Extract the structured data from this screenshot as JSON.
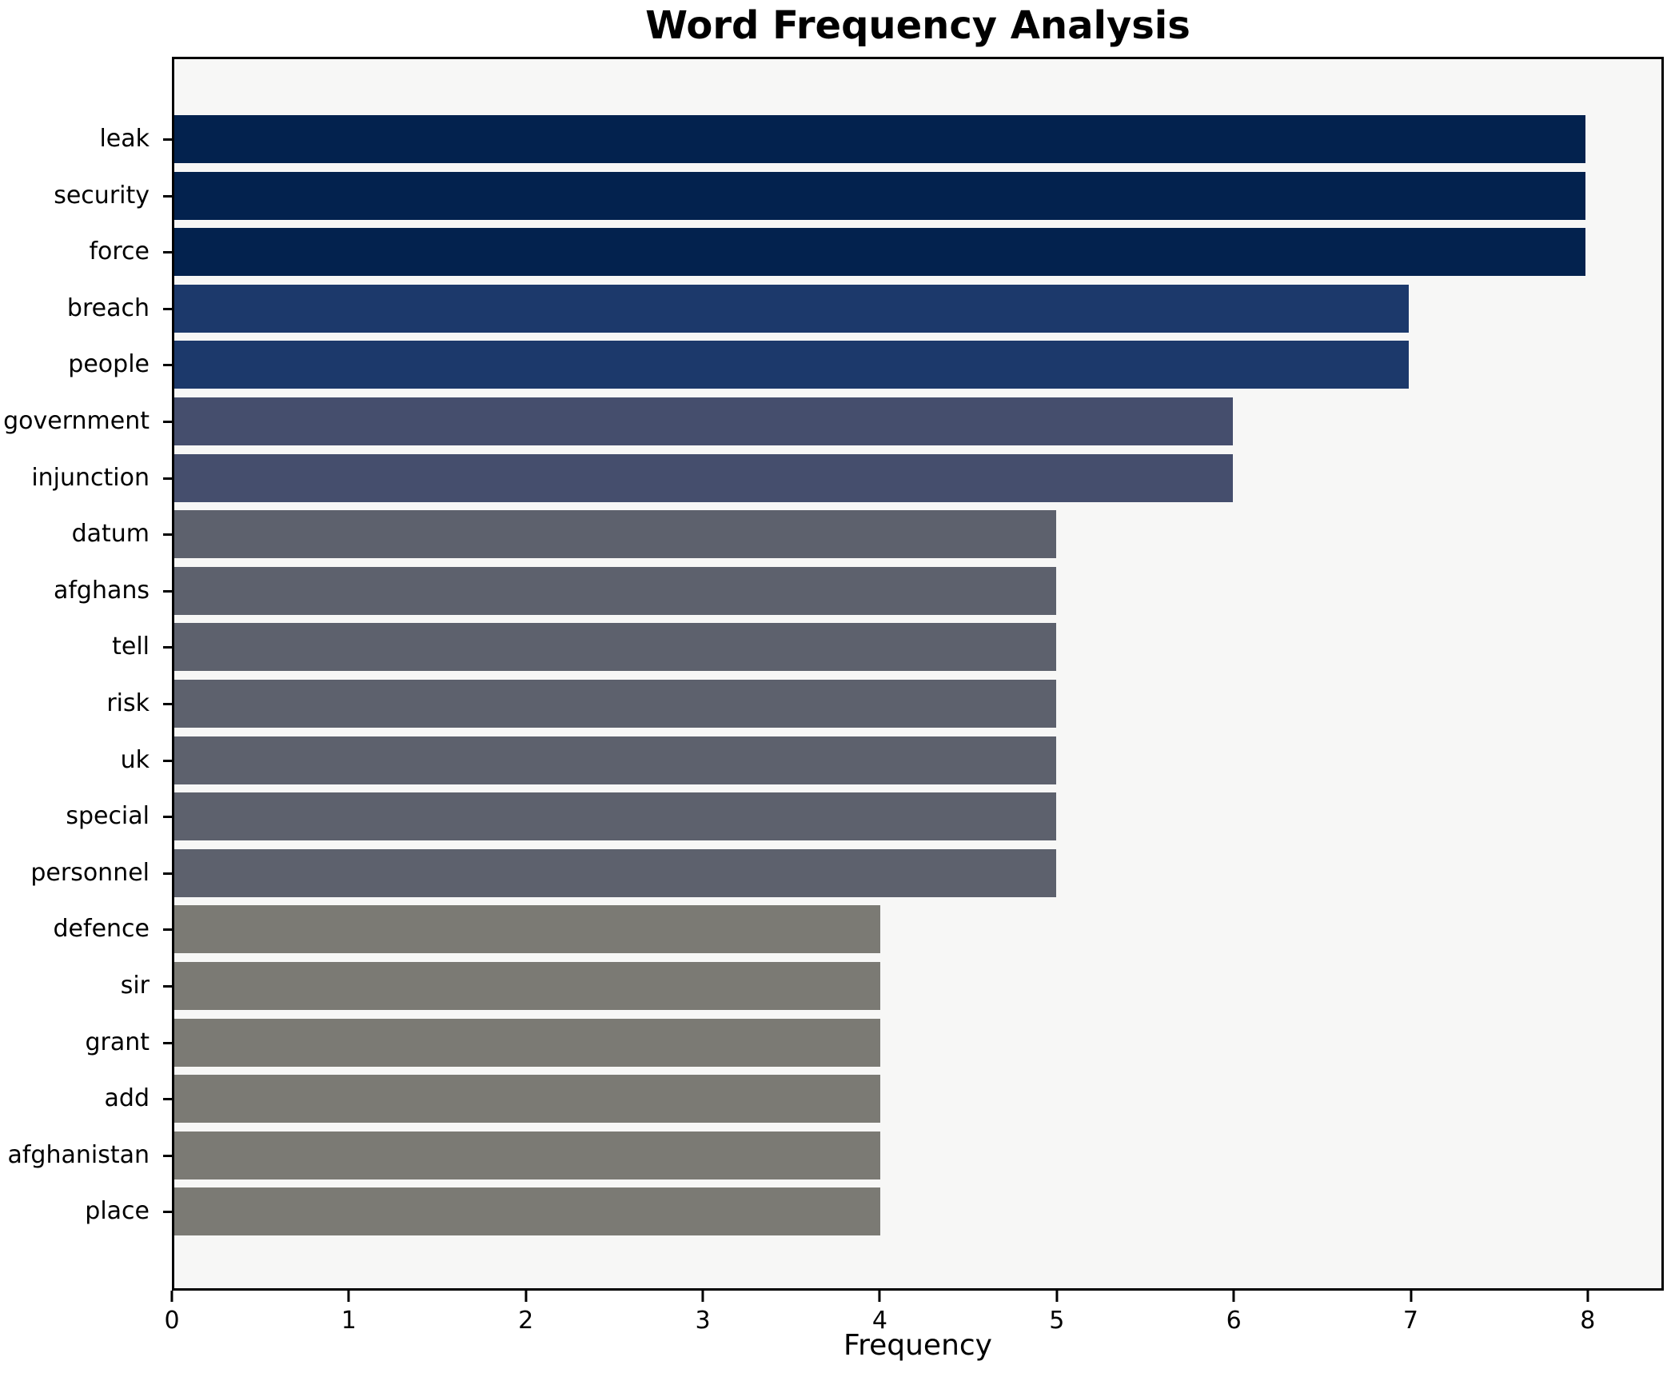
{
  "chart_data": {
    "type": "bar",
    "orientation": "horizontal",
    "title": "Word Frequency Analysis",
    "xlabel": "Frequency",
    "ylabel": "",
    "categories": [
      "leak",
      "security",
      "force",
      "breach",
      "people",
      "government",
      "injunction",
      "datum",
      "afghans",
      "tell",
      "risk",
      "uk",
      "special",
      "personnel",
      "defence",
      "sir",
      "grant",
      "add",
      "afghanistan",
      "place"
    ],
    "values": [
      8,
      8,
      8,
      7,
      7,
      6,
      6,
      5,
      5,
      5,
      5,
      5,
      5,
      5,
      4,
      4,
      4,
      4,
      4,
      4
    ],
    "bar_colors": [
      "#03224e",
      "#03224e",
      "#03224e",
      "#1c396b",
      "#1c396b",
      "#454e6d",
      "#454e6d",
      "#5d616d",
      "#5d616d",
      "#5d616d",
      "#5d616d",
      "#5d616d",
      "#5d616d",
      "#5d616d",
      "#7b7a74",
      "#7b7a74",
      "#7b7a74",
      "#7b7a74",
      "#7b7a74",
      "#7b7a74"
    ],
    "x_ticks": [
      0,
      1,
      2,
      3,
      4,
      5,
      6,
      7,
      8
    ],
    "xlim": [
      0,
      8.43
    ],
    "grid": false,
    "legend": null,
    "plot_background": "#f7f7f6",
    "figure_background": "#ffffff",
    "axis_color": "#000000",
    "color_by_value": {
      "8": "#03224e",
      "7": "#1c396b",
      "6": "#454e6d",
      "5": "#5d616d",
      "4": "#7b7a74"
    }
  }
}
